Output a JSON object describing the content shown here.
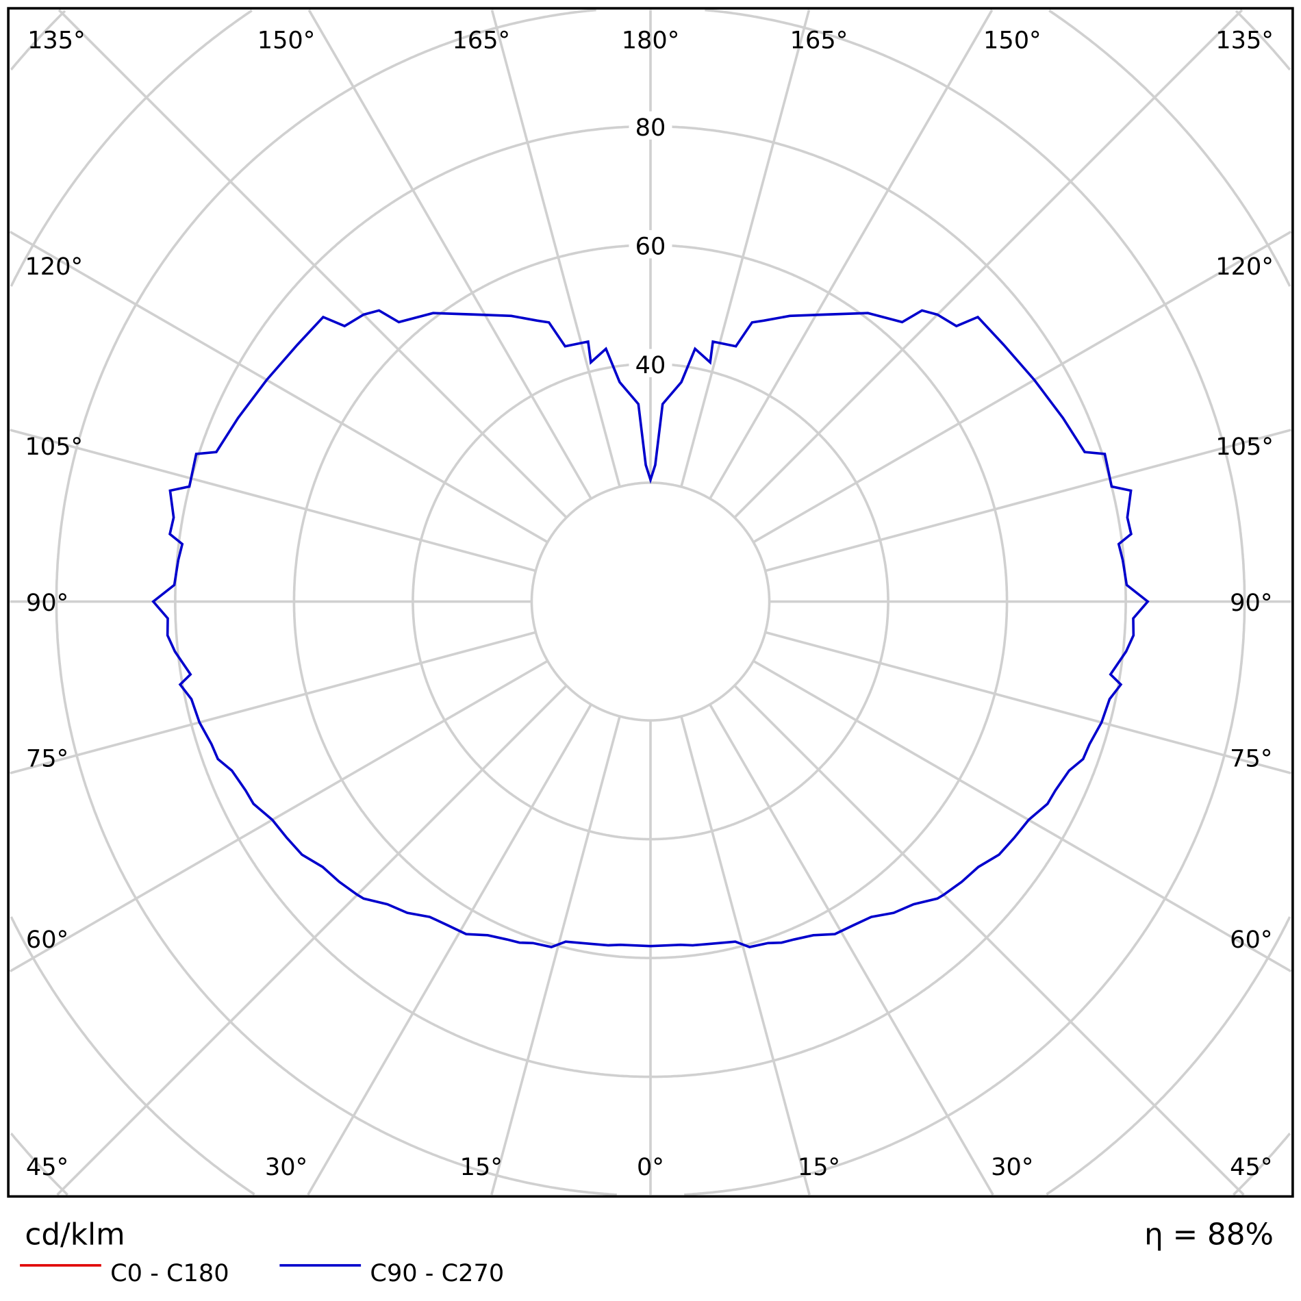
{
  "chart_data": {
    "type": "polar",
    "unit_label": "cd/klm",
    "efficiency_label": "η = 88%",
    "radial_tick_labels": [
      "40",
      "60",
      "80"
    ],
    "radial_ring_values": [
      20,
      40,
      60,
      80,
      100,
      120,
      140
    ],
    "angle_tick_labels": {
      "top": [
        "135°",
        "150°",
        "165°",
        "180°",
        "165°",
        "150°",
        "135°"
      ],
      "left": [
        "120°",
        "105°",
        "90°",
        "75°",
        "60°"
      ],
      "right": [
        "120°",
        "105°",
        "90°",
        "75°",
        "60°"
      ],
      "bottom": [
        "45°",
        "30°",
        "15°",
        "0°",
        "15°",
        "30°",
        "45°"
      ]
    },
    "grid": true,
    "legend_placement": "bottom-left",
    "series": [
      {
        "name": "C0 - C180",
        "color": "#e00000",
        "points": []
      },
      {
        "name": "C90 - C270",
        "color": "#0000cc",
        "symmetric": true,
        "points": [
          [
            0,
            58
          ],
          [
            5,
            58
          ],
          [
            7,
            58.3
          ],
          [
            10,
            58.5
          ],
          [
            14,
            59
          ],
          [
            16,
            60.5
          ],
          [
            19,
            60.8
          ],
          [
            21,
            61.5
          ],
          [
            23,
            61.8
          ],
          [
            26,
            62.5
          ],
          [
            29,
            64
          ],
          [
            32,
            64.3
          ],
          [
            35,
            64.8
          ],
          [
            38,
            66.5
          ],
          [
            41,
            67.5
          ],
          [
            44,
            69.5
          ],
          [
            45,
            69.8
          ],
          [
            48,
            70.5
          ],
          [
            51,
            71
          ],
          [
            54,
            72.5
          ],
          [
            57,
            73
          ],
          [
            60,
            73.5
          ],
          [
            63,
            75
          ],
          [
            65,
            75.2
          ],
          [
            68,
            76
          ],
          [
            70,
            77.5
          ],
          [
            72,
            77.7
          ],
          [
            75,
            78.6
          ],
          [
            78,
            79
          ],
          [
            80,
            80.4
          ],
          [
            81,
            78.4
          ],
          [
            84,
            80.5
          ],
          [
            86,
            81.5
          ],
          [
            88,
            81.3
          ],
          [
            90,
            83.7
          ],
          [
            92,
            80.2
          ],
          [
            95,
            79.8
          ],
          [
            97,
            79.4
          ],
          [
            98,
            81.7
          ],
          [
            100,
            81.5
          ],
          [
            103,
            83
          ],
          [
            104,
            80
          ],
          [
            108,
            80.4
          ],
          [
            109,
            77.3
          ],
          [
            114,
            76
          ],
          [
            120,
            74.6
          ],
          [
            126,
            73.5
          ],
          [
            131,
            73
          ],
          [
            132,
            69.3
          ],
          [
            135,
            68.3
          ],
          [
            137,
            67
          ],
          [
            138,
            63.3
          ],
          [
            143,
            60.8
          ],
          [
            148,
            57
          ],
          [
            154,
            53.5
          ],
          [
            158,
            51
          ],
          [
            160,
            50
          ],
          [
            161.5,
            45.3
          ],
          [
            166.5,
            45
          ],
          [
            166,
            41.5
          ],
          [
            170,
            43.2
          ],
          [
            172,
            37.3
          ],
          [
            176.5,
            33.3
          ],
          [
            178,
            23
          ],
          [
            180,
            20.5
          ]
        ]
      }
    ]
  }
}
